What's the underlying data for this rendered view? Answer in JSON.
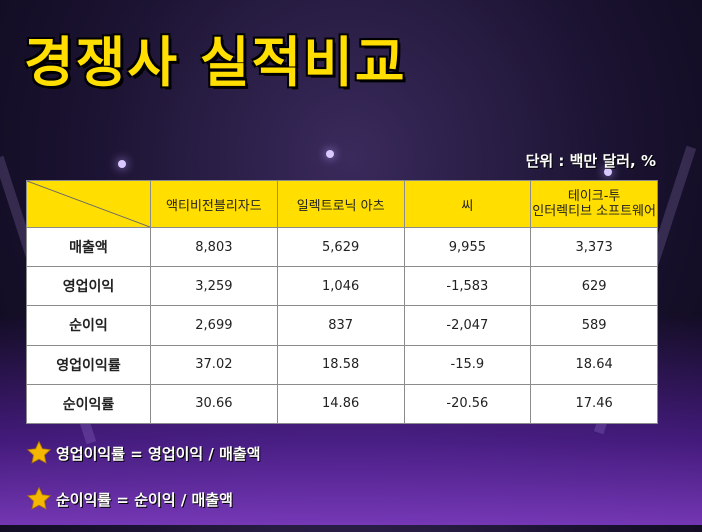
{
  "title": "경쟁사 실적비교",
  "unit_note": "단위 : 백만 달러, %",
  "table": {
    "columns": [
      {
        "line1": "액티비전블리자드",
        "line2": ""
      },
      {
        "line1": "일렉트로닉 아츠",
        "line2": ""
      },
      {
        "line1": "씨",
        "line2": ""
      },
      {
        "line1": "테이크-투",
        "line2": "인터렉티브 소프트웨어"
      }
    ],
    "rows": [
      {
        "label": "매출액",
        "values": [
          "8,803",
          "5,629",
          "9,955",
          "3,373"
        ]
      },
      {
        "label": "영업이익",
        "values": [
          "3,259",
          "1,046",
          "-1,583",
          "629"
        ]
      },
      {
        "label": "순이익",
        "values": [
          "2,699",
          "837",
          "-2,047",
          "589"
        ]
      },
      {
        "label": "영업이익률",
        "values": [
          "37.02",
          "18.58",
          "-15.9",
          "18.64"
        ]
      },
      {
        "label": "순이익률",
        "values": [
          "30.66",
          "14.86",
          "-20.56",
          "17.46"
        ]
      }
    ]
  },
  "notes": [
    {
      "text": "영업이익률 = 영업이익 / 매출액",
      "icon": "star-icon"
    },
    {
      "text": "순이익률 = 순이익 / 매출액",
      "icon": "star-icon"
    }
  ],
  "colors": {
    "accent": "#ffde00",
    "star": "#f5b800"
  }
}
